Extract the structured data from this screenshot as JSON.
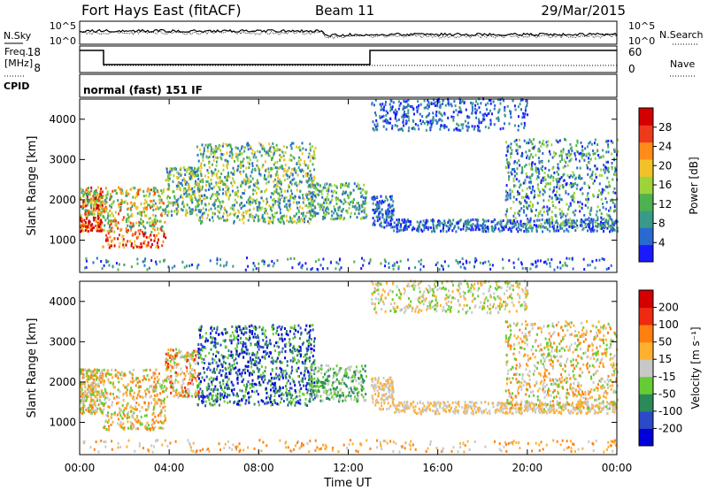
{
  "header": {
    "title": "Fort Hays East (fitACF)",
    "beam": "Beam 11",
    "date": "29/Mar/2015"
  },
  "noise_panel": {
    "left_label": "N.Sky",
    "right_label": "N.Search",
    "y_ticks_left": [
      "10^5",
      "10^0"
    ],
    "y_ticks_right": [
      "10^5",
      "10^0"
    ]
  },
  "freq_panel": {
    "left_label_1": "Freq.",
    "left_label_2": "[MHz]",
    "right_label": "Nave",
    "y_ticks_left": [
      "18",
      "8"
    ],
    "y_ticks_right": [
      "60",
      "0"
    ]
  },
  "cpid_panel": {
    "label": "CPID",
    "text": "normal (fast) 151 IF"
  },
  "chart_data": [
    {
      "type": "heatmap",
      "name": "power",
      "ylabel": "Slant Range [km]",
      "ylim": [
        200,
        4500
      ],
      "yticks": [
        "1000",
        "2000",
        "3000",
        "4000"
      ],
      "xlim": [
        0,
        24
      ],
      "colorbar_label": "Power [dB]",
      "colorbar_ticks": [
        "4",
        "8",
        "12",
        "16",
        "20",
        "24",
        "28"
      ],
      "colorscale": [
        "#1a1aff",
        "#2a6ad0",
        "#3a9a8a",
        "#4fb14f",
        "#9ed43a",
        "#f2c22a",
        "#ff8c1a",
        "#ee3a1a",
        "#d40000"
      ]
    },
    {
      "type": "heatmap",
      "name": "velocity",
      "ylabel": "Slant Range [km]",
      "ylim": [
        200,
        4500
      ],
      "yticks": [
        "1000",
        "2000",
        "3000",
        "4000"
      ],
      "xlim": [
        0,
        24
      ],
      "xlabel": "Time UT",
      "xticks": [
        "00:00",
        "04:00",
        "08:00",
        "12:00",
        "16:00",
        "20:00",
        "00:00"
      ],
      "colorbar_label": "Velocity [m s⁻¹]",
      "colorbar_ticks": [
        "200",
        "100",
        "50",
        "15",
        "-15",
        "-50",
        "-100",
        "-200"
      ],
      "colorscale": [
        "#0000d8",
        "#2a4ac8",
        "#2a8a5a",
        "#66cc33",
        "#c8c8c8",
        "#ffb030",
        "#ff8010",
        "#ee2a10",
        "#d40000"
      ]
    }
  ]
}
